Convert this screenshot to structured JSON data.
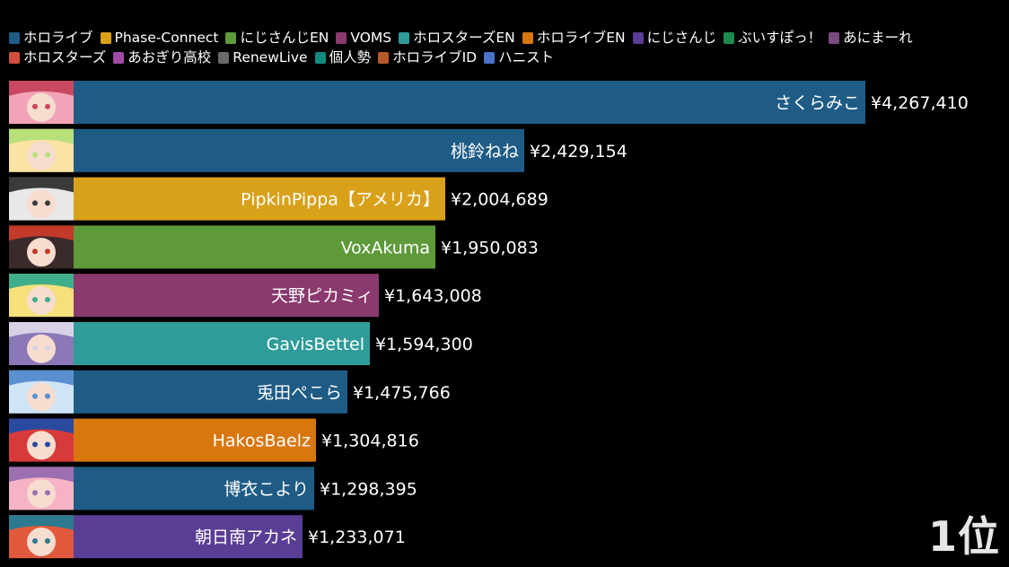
{
  "chart_data": {
    "type": "bar",
    "orientation": "horizontal",
    "legend": [
      {
        "name": "ホロライブ",
        "color": "#1f5c85"
      },
      {
        "name": "Phase-Connect",
        "color": "#d9a11a"
      },
      {
        "name": "にじさんじEN",
        "color": "#5e9a3a"
      },
      {
        "name": "VOMS",
        "color": "#8a3a6e"
      },
      {
        "name": "ホロスターズEN",
        "color": "#2f9c9a"
      },
      {
        "name": "ホロライブEN",
        "color": "#d9770f"
      },
      {
        "name": "にじさんじ",
        "color": "#5a3d94"
      },
      {
        "name": "ぶいすぽっ！",
        "color": "#1c8a4e"
      },
      {
        "name": "あにまーれ",
        "color": "#7a4a82"
      },
      {
        "name": "ホロスターズ",
        "color": "#d14f3d"
      },
      {
        "name": "あおぎり高校",
        "color": "#a04aa6"
      },
      {
        "name": "RenewLive",
        "color": "#6a6a6a"
      },
      {
        "name": "個人勢",
        "color": "#138a80"
      },
      {
        "name": "ホロライブID",
        "color": "#b55a2a"
      },
      {
        "name": "ハニスト",
        "color": "#4a73c9"
      }
    ],
    "bars": [
      {
        "name": "さくらみこ",
        "value": 4267410,
        "value_label": "¥4,267,410",
        "group": "ホロライブ",
        "color": "#1f5c85",
        "avatar": [
          "#f2a3b8",
          "#c9485f"
        ]
      },
      {
        "name": "桃鈴ねね",
        "value": 2429154,
        "value_label": "¥2,429,154",
        "group": "ホロライブ",
        "color": "#1f5c85",
        "avatar": [
          "#fbe3a3",
          "#b7e07a"
        ]
      },
      {
        "name": "PipkinPippa【アメリカ】",
        "value": 2004689,
        "value_label": "¥2,004,689",
        "group": "Phase-Connect",
        "color": "#d9a11a",
        "avatar": [
          "#e8e8e8",
          "#3a3a3a"
        ]
      },
      {
        "name": "VoxAkuma",
        "value": 1950083,
        "value_label": "¥1,950,083",
        "group": "にじさんじEN",
        "color": "#5e9a3a",
        "avatar": [
          "#3b2a2a",
          "#c13a2a"
        ]
      },
      {
        "name": "天野ピカミィ",
        "value": 1643008,
        "value_label": "¥1,643,008",
        "group": "VOMS",
        "color": "#8a3a6e",
        "avatar": [
          "#f6e07a",
          "#3fae8a"
        ]
      },
      {
        "name": "GavisBettel",
        "value": 1594300,
        "value_label": "¥1,594,300",
        "group": "ホロスターズEN",
        "color": "#2f9c9a",
        "avatar": [
          "#8a78b8",
          "#d9d2e6"
        ]
      },
      {
        "name": "兎田ぺこら",
        "value": 1475766,
        "value_label": "¥1,475,766",
        "group": "ホロライブ",
        "color": "#1f5c85",
        "avatar": [
          "#cfe4f6",
          "#5a8fd0"
        ]
      },
      {
        "name": "HakosBaelz",
        "value": 1304816,
        "value_label": "¥1,304,816",
        "group": "ホロライブEN",
        "color": "#d9770f",
        "avatar": [
          "#d83a3a",
          "#2a4aa0"
        ]
      },
      {
        "name": "博衣こより",
        "value": 1298395,
        "value_label": "¥1,298,395",
        "group": "ホロライブ",
        "color": "#1f5c85",
        "avatar": [
          "#f6b3c6",
          "#9b6fb0"
        ]
      },
      {
        "name": "朝日南アカネ",
        "value": 1233071,
        "value_label": "¥1,233,071",
        "group": "にじさんじ",
        "color": "#5a3d94",
        "avatar": [
          "#e0593a",
          "#2c7a8e"
        ]
      }
    ]
  },
  "rank_label": "1位"
}
